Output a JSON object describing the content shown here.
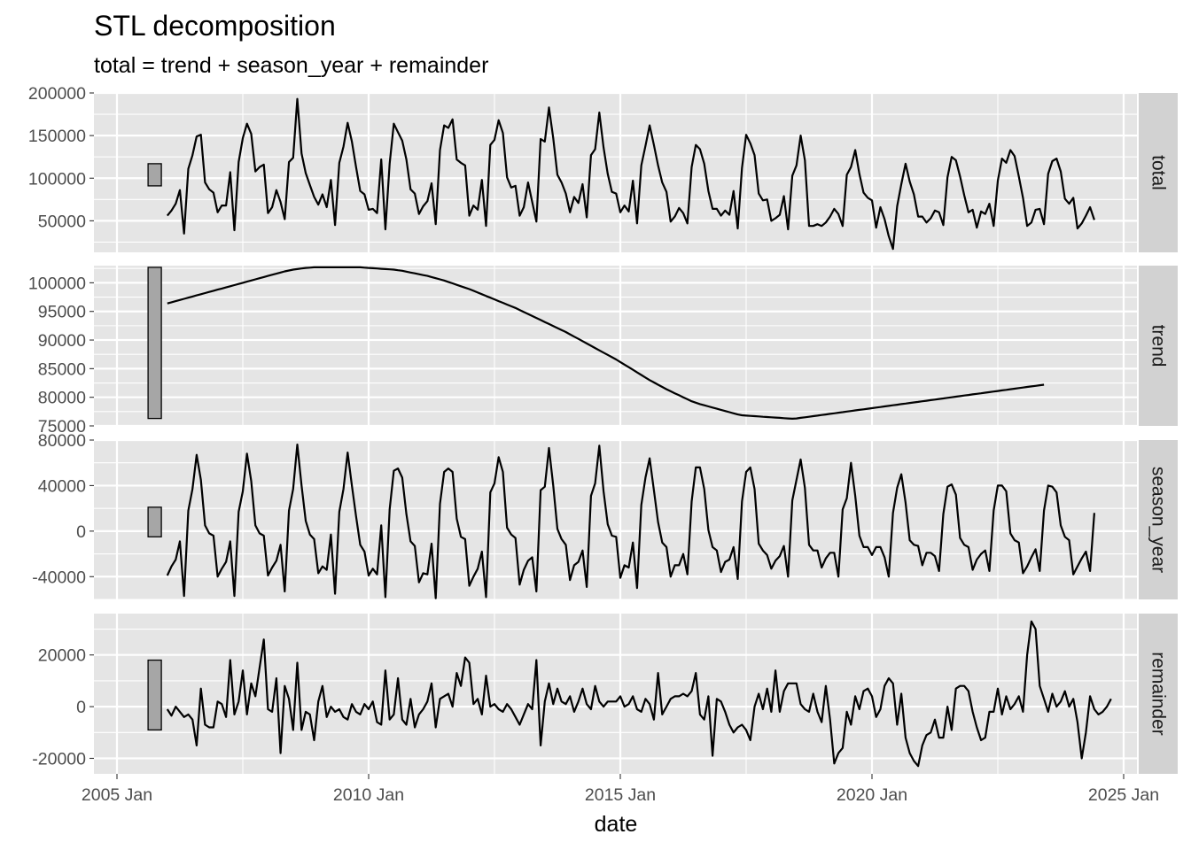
{
  "chart_data": {
    "type": "line",
    "title": "STL decomposition",
    "subtitle": "total = trend + season_year + remainder",
    "xlabel": "date",
    "ylabel": "",
    "x_start": "2006 Jan",
    "x_end": "2024 Jun",
    "frequency": "monthly",
    "x_ticks": [
      "2005 Jan",
      "2010 Jan",
      "2015 Jan",
      "2020 Jan",
      "2025 Jan"
    ],
    "grid": true,
    "legend": "none",
    "colors": {
      "panel": "#e5e5e5",
      "grid": "#ffffff",
      "strip": "#d2d2d2",
      "line": "#000000",
      "scale_bar": "#a6a6a6"
    },
    "panels": [
      {
        "name": "total",
        "ylim": [
          13000,
          200000
        ],
        "y_ticks": [
          50000,
          100000,
          150000,
          200000
        ],
        "y_tick_labels": [
          "50000",
          "100000",
          "150000",
          "200000"
        ],
        "scale_bar": [
          91000,
          117000
        ],
        "values": [
          56000,
          62000,
          70000,
          86000,
          35000,
          111000,
          127000,
          149000,
          151000,
          95000,
          87000,
          83000,
          60000,
          68000,
          68000,
          107000,
          39000,
          119000,
          147000,
          164000,
          152000,
          108000,
          113000,
          116000,
          59000,
          66000,
          86000,
          72000,
          52000,
          119000,
          124000,
          193000,
          129000,
          106000,
          92000,
          78000,
          69000,
          81000,
          66000,
          98000,
          45000,
          118000,
          137000,
          165000,
          143000,
          113000,
          85000,
          81000,
          63000,
          64000,
          59000,
          122000,
          40000,
          117000,
          164000,
          154000,
          144000,
          122000,
          87000,
          82000,
          58000,
          67000,
          73000,
          94000,
          46000,
          133000,
          162000,
          159000,
          169000,
          122000,
          118000,
          115000,
          56000,
          68000,
          63000,
          98000,
          44000,
          139000,
          145000,
          168000,
          153000,
          101000,
          89000,
          91000,
          56000,
          66000,
          95000,
          72000,
          49000,
          146000,
          143000,
          183000,
          147000,
          104000,
          95000,
          82000,
          60000,
          78000,
          71000,
          93000,
          54000,
          127000,
          134000,
          177000,
          136000,
          105000,
          84000,
          82000,
          60000,
          68000,
          61000,
          97000,
          47000,
          115000,
          138000,
          162000,
          139000,
          115000,
          95000,
          84000,
          49000,
          55000,
          65000,
          59000,
          47000,
          113000,
          139000,
          134000,
          117000,
          85000,
          64000,
          64000,
          56000,
          62000,
          57000,
          85000,
          41000,
          112000,
          151000,
          141000,
          127000,
          82000,
          74000,
          75000,
          50000,
          53000,
          57000,
          79000,
          40000,
          103000,
          115000,
          150000,
          121000,
          44000,
          44000,
          46000,
          44000,
          48000,
          55000,
          64000,
          58000,
          44000,
          104000,
          113000,
          133000,
          105000,
          83000,
          77000,
          74000,
          42000,
          66000,
          52000,
          32000,
          17000,
          67000,
          93000,
          117000,
          96000,
          81000,
          55000,
          55000,
          48000,
          53000,
          62000,
          60000,
          45000,
          101000,
          125000,
          121000,
          102000,
          80000,
          60000,
          63000,
          42000,
          61000,
          58000,
          70000,
          44000,
          97000,
          123000,
          118000,
          133000,
          126000,
          102000,
          77000,
          44000,
          48000,
          63000,
          64000,
          46000,
          105000,
          120000,
          123000,
          108000,
          76000,
          70000,
          77000,
          41000,
          47000,
          56000,
          66000,
          51000
        ]
      },
      {
        "name": "trend",
        "ylim": [
          75000,
          103000
        ],
        "y_ticks": [
          75000,
          80000,
          85000,
          90000,
          95000,
          100000
        ],
        "y_tick_labels": [
          "75000",
          "80000",
          "85000",
          "90000",
          "95000",
          "100000"
        ],
        "scale_bar": [
          76300,
          102700
        ],
        "values": [
          96400,
          96600,
          96800,
          97000,
          97200,
          97400,
          97600,
          97800,
          98000,
          98200,
          98400,
          98600,
          98800,
          99000,
          99200,
          99400,
          99600,
          99800,
          100000,
          100200,
          100400,
          100600,
          100800,
          101000,
          101200,
          101400,
          101600,
          101800,
          102000,
          102150,
          102300,
          102400,
          102500,
          102600,
          102650,
          102700,
          102700,
          102700,
          102700,
          102700,
          102700,
          102700,
          102700,
          102700,
          102700,
          102700,
          102700,
          102650,
          102600,
          102550,
          102500,
          102450,
          102400,
          102350,
          102300,
          102200,
          102100,
          101950,
          101800,
          101650,
          101500,
          101350,
          101200,
          101000,
          100800,
          100600,
          100400,
          100150,
          99900,
          99650,
          99400,
          99150,
          98900,
          98600,
          98300,
          98000,
          97700,
          97400,
          97100,
          96800,
          96500,
          96200,
          95900,
          95600,
          95250,
          94900,
          94550,
          94200,
          93850,
          93500,
          93150,
          92800,
          92450,
          92100,
          91750,
          91400,
          91000,
          90600,
          90200,
          89800,
          89400,
          89000,
          88600,
          88200,
          87800,
          87400,
          87000,
          86600,
          86150,
          85700,
          85250,
          84800,
          84350,
          83900,
          83450,
          83000,
          82600,
          82200,
          81800,
          81400,
          81050,
          80700,
          80350,
          80000,
          79650,
          79300,
          79050,
          78800,
          78600,
          78400,
          78200,
          78000,
          77800,
          77600,
          77400,
          77200,
          77000,
          76850,
          76800,
          76750,
          76700,
          76650,
          76600,
          76550,
          76500,
          76450,
          76400,
          76350,
          76300,
          76250,
          76300,
          76400,
          76500,
          76600,
          76700,
          76800,
          76900,
          77000,
          77100,
          77200,
          77300,
          77400,
          77500,
          77600,
          77700,
          77800,
          77900,
          78000,
          78100,
          78200,
          78300,
          78400,
          78500,
          78600,
          78700,
          78800,
          78900,
          79000,
          79100,
          79200,
          79300,
          79400,
          79500,
          79600,
          79700,
          79800,
          79900,
          80000,
          80100,
          80200,
          80300,
          80400,
          80500,
          80600,
          80700,
          80800,
          80900,
          81000,
          81100,
          81200,
          81300,
          81400,
          81500,
          81600,
          81700,
          81800,
          81900,
          82000,
          82100,
          82200
        ]
      },
      {
        "name": "season_year",
        "ylim": [
          -60000,
          80000
        ],
        "y_ticks": [
          -40000,
          0,
          40000,
          80000
        ],
        "y_tick_labels": [
          "-40000",
          "0",
          "40000",
          "80000"
        ],
        "scale_bar": [
          -5000,
          21000
        ],
        "values": [
          -39000,
          -31000,
          -25000,
          -9000,
          -57000,
          18000,
          37000,
          67000,
          45000,
          5000,
          -2000,
          -4000,
          -40000,
          -33000,
          -27000,
          -9000,
          -57000,
          17000,
          35000,
          68000,
          44000,
          5000,
          -2000,
          -4000,
          -39000,
          -32000,
          -26000,
          -12000,
          -53000,
          18000,
          37000,
          76000,
          40000,
          9000,
          -3000,
          -7000,
          -37000,
          -31000,
          -34000,
          -3000,
          -55000,
          17000,
          37000,
          69000,
          40000,
          13000,
          -12000,
          -18000,
          -39000,
          -33000,
          -38000,
          5000,
          -58000,
          19000,
          53000,
          55000,
          47000,
          15000,
          -9000,
          -13000,
          -45000,
          -37000,
          -38000,
          -11000,
          -59000,
          24000,
          52000,
          55000,
          52000,
          11000,
          -5000,
          -7000,
          -48000,
          -40000,
          -33000,
          -18000,
          -58000,
          34000,
          42000,
          65000,
          52000,
          3000,
          -3000,
          -6000,
          -47000,
          -34000,
          -26000,
          -23000,
          -53000,
          36000,
          39000,
          73000,
          40000,
          2000,
          -7000,
          -12000,
          -43000,
          -30000,
          -27000,
          -17000,
          -49000,
          31000,
          42000,
          75000,
          35000,
          6000,
          -4000,
          -5000,
          -41000,
          -30000,
          -32000,
          -10000,
          -50000,
          23000,
          47000,
          64000,
          36000,
          8000,
          -10000,
          -14000,
          -40000,
          -30000,
          -30000,
          -20000,
          -38000,
          26000,
          56000,
          56000,
          37000,
          1000,
          -14000,
          -17000,
          -36000,
          -27000,
          -25000,
          -14000,
          -42000,
          26000,
          52000,
          56000,
          37000,
          -11000,
          -17000,
          -21000,
          -33000,
          -26000,
          -22000,
          -13000,
          -40000,
          27000,
          45000,
          63000,
          38000,
          -12000,
          -17000,
          -17000,
          -32000,
          -24000,
          -19000,
          -19000,
          -40000,
          19000,
          29000,
          60000,
          31000,
          -4000,
          -14000,
          -14000,
          -21000,
          -14000,
          -14000,
          -23000,
          -40000,
          16000,
          38000,
          50000,
          25000,
          -8000,
          -12000,
          -13000,
          -30000,
          -19000,
          -19000,
          -22000,
          -35000,
          15000,
          39000,
          41000,
          32000,
          -6000,
          -12000,
          -14000,
          -34000,
          -25000,
          -20000,
          -17000,
          -35000,
          18000,
          40000,
          40000,
          35000,
          -2000,
          -8000,
          -10000,
          -37000,
          -31000,
          -23000,
          -16000,
          -35000,
          18000,
          40000,
          39000,
          34000,
          5000,
          -5000,
          -8000,
          -38000,
          -31000,
          -24000,
          -18000,
          -35000,
          16000
        ]
      },
      {
        "name": "remainder",
        "ylim": [
          -26000,
          36000
        ],
        "y_ticks": [
          -20000,
          0,
          20000
        ],
        "y_tick_labels": [
          "-20000",
          "0",
          "20000"
        ],
        "scale_bar": [
          -9000,
          18000
        ],
        "values": [
          -1000,
          -3500,
          0,
          -2000,
          -4000,
          -3000,
          -5000,
          -15000,
          7000,
          -7000,
          -8000,
          -8000,
          2000,
          1000,
          -4000,
          18000,
          -3000,
          2000,
          14000,
          -3000,
          9000,
          4000,
          15000,
          26000,
          -1000,
          -2000,
          11000,
          -18000,
          8000,
          3000,
          -9000,
          17000,
          -9000,
          -2000,
          -3000,
          -13000,
          2000,
          8000,
          -4000,
          0,
          -2000,
          -1000,
          -4000,
          -5000,
          1000,
          -2000,
          -3000,
          1000,
          -1000,
          2000,
          -6000,
          -7000,
          14000,
          -5000,
          -3000,
          11000,
          -5000,
          -7000,
          3000,
          -8000,
          -3000,
          -1000,
          2000,
          9000,
          -8000,
          3000,
          4000,
          5000,
          0,
          13000,
          8000,
          19000,
          17000,
          1000,
          3000,
          -3000,
          12000,
          0,
          1000,
          -1000,
          -2000,
          1000,
          -1000,
          -4000,
          -7000,
          -3000,
          1000,
          -1000,
          18000,
          -15000,
          2000,
          9000,
          1000,
          7000,
          2000,
          1000,
          4000,
          -2000,
          2000,
          7000,
          1000,
          -1000,
          8000,
          2000,
          0,
          2000,
          2000,
          2000,
          4000,
          0,
          1000,
          4000,
          -1000,
          -2000,
          3000,
          1000,
          -5000,
          13000,
          -3000,
          0,
          3000,
          4000,
          4000,
          5000,
          4000,
          6000,
          13000,
          -3000,
          -5000,
          4000,
          -19000,
          3000,
          2000,
          -2000,
          -7000,
          -10000,
          -8000,
          -7000,
          -9000,
          -13000,
          0,
          5000,
          -1000,
          7000,
          -2000,
          14000,
          -2000,
          6000,
          9000,
          9000,
          9000,
          1000,
          -1000,
          -2000,
          5000,
          -2000,
          -6000,
          8000,
          -5000,
          -22000,
          -18000,
          -16000,
          -2000,
          -7000,
          4000,
          -1000,
          6000,
          7000,
          4000,
          -4000,
          -1000,
          8000,
          11000,
          9000,
          -7000,
          5000,
          -12000,
          -18000,
          -21000,
          -23000,
          -15000,
          -11000,
          -10000,
          -5000,
          -12000,
          -12000,
          0,
          -9000,
          7000,
          8000,
          8000,
          6000,
          -2000,
          -8000,
          -13000,
          -12000,
          -2000,
          -2000,
          7000,
          -3000,
          4000,
          -1000,
          1000,
          4000,
          -2000,
          20000,
          33000,
          30000,
          8000,
          3000,
          -2000,
          5000,
          0,
          2000,
          6000,
          0,
          3000,
          -6000,
          -20000,
          -10000,
          4000,
          -1000,
          -3000,
          -2000,
          0,
          3000
        ]
      }
    ]
  }
}
